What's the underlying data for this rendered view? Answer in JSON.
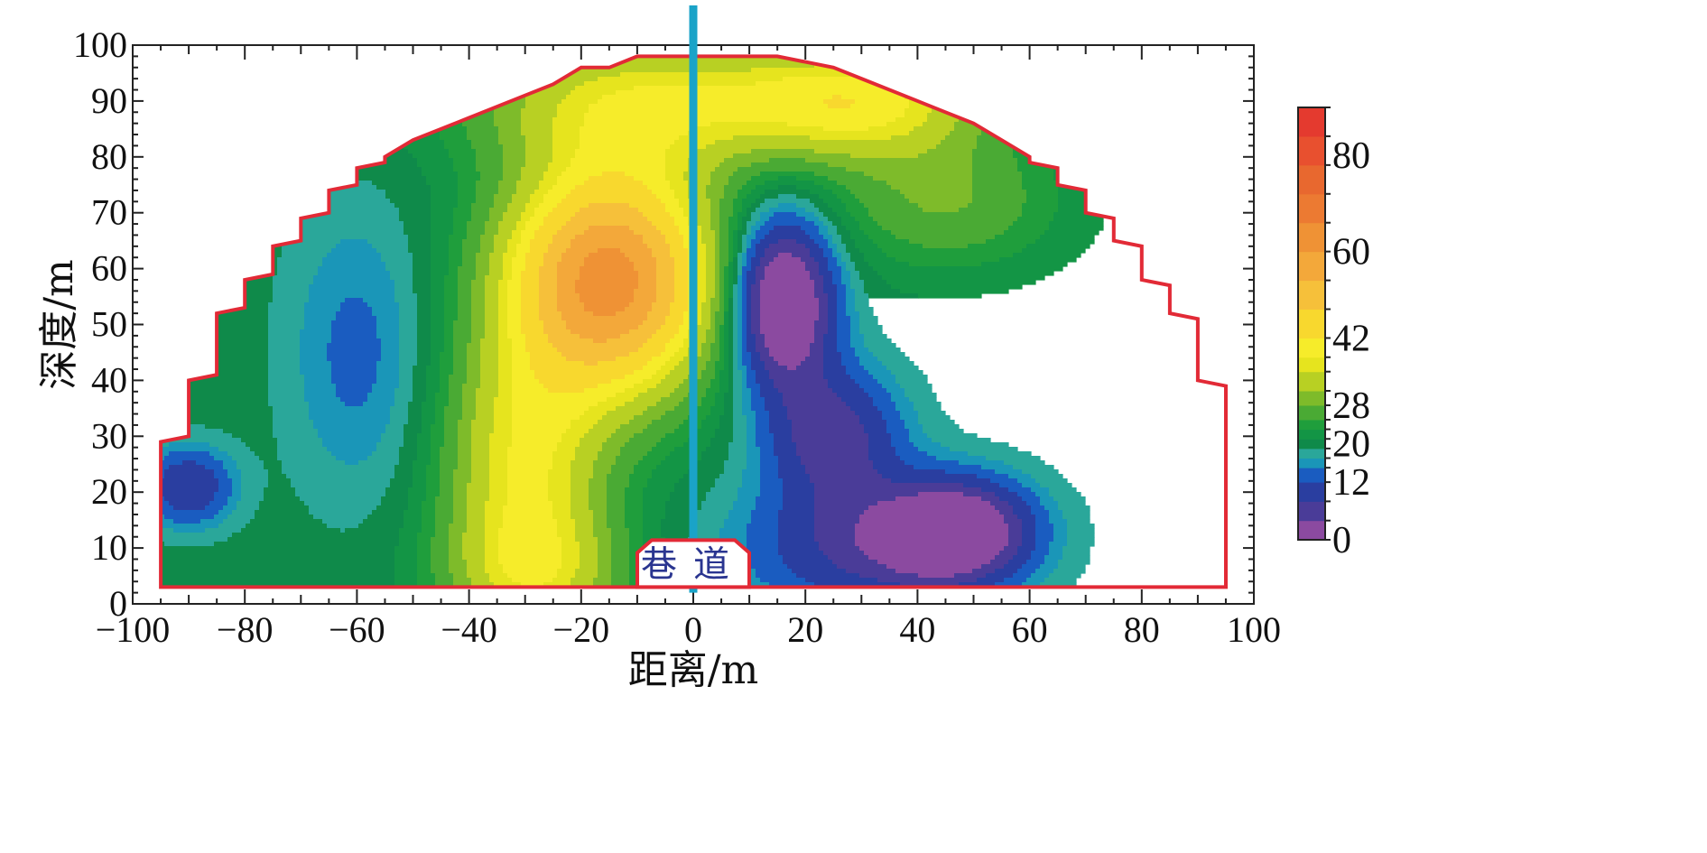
{
  "chart_data": {
    "type": "heatmap",
    "subtype": "filled-contour",
    "xlabel": "距离/m",
    "ylabel": "深度/m",
    "xlim": [
      -100,
      100
    ],
    "ylim": [
      0,
      100
    ],
    "xticks": [
      "-100",
      "-80",
      "-60",
      "-40",
      "-20",
      "0",
      "20",
      "40",
      "60",
      "80",
      "100"
    ],
    "yticks": [
      "0",
      "10",
      "20",
      "30",
      "40",
      "50",
      "60",
      "70",
      "80",
      "90",
      "100"
    ],
    "colorbar": {
      "range": [
        0,
        90
      ],
      "tick_labels": [
        "0",
        "12",
        "20",
        "28",
        "42",
        "60",
        "80"
      ],
      "tick_values": [
        0,
        12,
        20,
        28,
        42,
        60,
        80
      ],
      "levels": [
        0,
        4,
        8,
        12,
        15,
        17,
        19,
        21,
        23,
        25,
        28,
        31,
        35,
        38,
        42,
        48,
        54,
        60,
        66,
        72,
        78,
        84,
        90
      ],
      "colors": [
        "#8b4aa0",
        "#4a3c98",
        "#2a3ea0",
        "#1a5cc0",
        "#1a96b8",
        "#2aa79a",
        "#0f8a4a",
        "#139545",
        "#1f9e3c",
        "#4aaa34",
        "#7ebb2a",
        "#b8d023",
        "#e6e41e",
        "#f6ec2a",
        "#f8d82e",
        "#f6c03a",
        "#f3a83a",
        "#ef9235",
        "#ec7a32",
        "#e8682f",
        "#e8502f",
        "#e43a2f"
      ]
    },
    "boundary": [
      [
        -95,
        3
      ],
      [
        -95,
        29
      ],
      [
        -90,
        30
      ],
      [
        -90,
        40
      ],
      [
        -85,
        41
      ],
      [
        -85,
        52
      ],
      [
        -80,
        53
      ],
      [
        -80,
        58
      ],
      [
        -75,
        59
      ],
      [
        -75,
        64
      ],
      [
        -70,
        65
      ],
      [
        -70,
        69
      ],
      [
        -65,
        70
      ],
      [
        -65,
        74
      ],
      [
        -60,
        75
      ],
      [
        -60,
        78
      ],
      [
        -55,
        79
      ],
      [
        -55,
        80
      ],
      [
        -50,
        83
      ],
      [
        -45,
        85
      ],
      [
        -40,
        87
      ],
      [
        -30,
        91
      ],
      [
        -25,
        93
      ],
      [
        -20,
        96
      ],
      [
        -15,
        96
      ],
      [
        -10,
        98
      ],
      [
        15,
        98
      ],
      [
        20,
        97
      ],
      [
        25,
        96
      ],
      [
        30,
        94
      ],
      [
        45,
        88
      ],
      [
        50,
        86
      ],
      [
        55,
        83
      ],
      [
        60,
        80
      ],
      [
        60,
        79
      ],
      [
        65,
        78
      ],
      [
        65,
        75
      ],
      [
        70,
        74
      ],
      [
        70,
        70
      ],
      [
        75,
        69
      ],
      [
        75,
        65
      ],
      [
        80,
        64
      ],
      [
        80,
        58
      ],
      [
        85,
        57
      ],
      [
        85,
        52
      ],
      [
        90,
        51
      ],
      [
        90,
        40
      ],
      [
        95,
        39
      ],
      [
        95,
        30
      ],
      [
        95,
        3
      ]
    ],
    "anomalies": [
      {
        "kind": "high",
        "x": -15,
        "y": 58,
        "value": 62
      },
      {
        "kind": "low",
        "x": 15,
        "y": 55,
        "value": 2
      },
      {
        "kind": "low",
        "x": 47,
        "y": 12,
        "value": 3
      },
      {
        "kind": "low",
        "x": -92,
        "y": 21,
        "value": 14
      }
    ],
    "marker_line": {
      "x": 0
    },
    "annotation": {
      "text": "巷道",
      "x": 0,
      "y": 3
    }
  },
  "colors": {
    "boundary": "#e22a36",
    "marker_line": "#1aa3c8",
    "contour": "#1a1a1a"
  }
}
